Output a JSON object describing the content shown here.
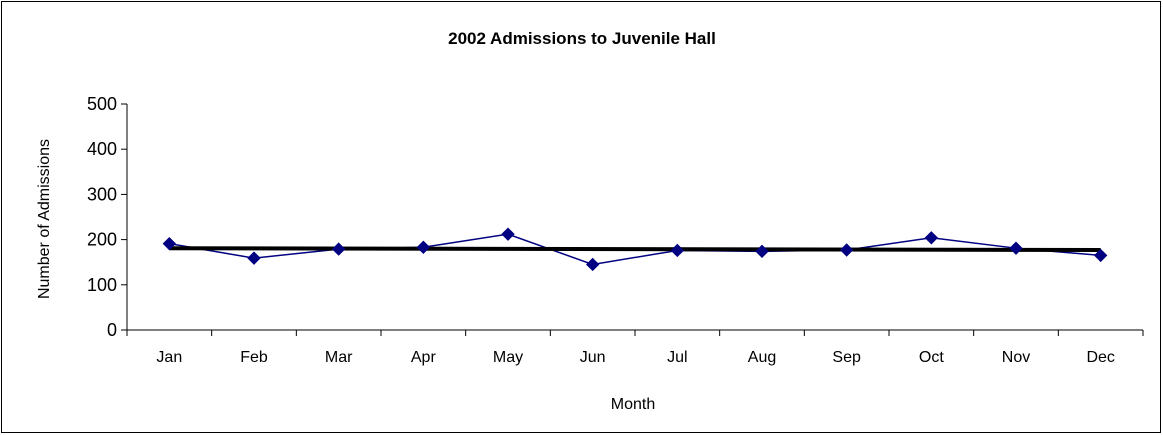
{
  "chart_data": {
    "type": "line",
    "title": "2002 Admissions to Juvenile Hall",
    "xlabel": "Month",
    "ylabel": "Number of Admissions",
    "categories": [
      "Jan",
      "Feb",
      "Mar",
      "Apr",
      "May",
      "Jun",
      "Jul",
      "Aug",
      "Sep",
      "Oct",
      "Nov",
      "Dec"
    ],
    "series": [
      {
        "values": [
          191,
          159,
          179,
          183,
          212,
          145,
          176,
          174,
          177,
          204,
          181,
          165
        ],
        "color": "#000080",
        "marker": "diamond"
      }
    ],
    "trendline": {
      "type": "linear",
      "start": 181,
      "end": 177,
      "color": "#000000"
    },
    "ylim": [
      0,
      500
    ],
    "yticks": [
      0,
      100,
      200,
      300,
      400,
      500
    ],
    "grid": false,
    "legend": "none"
  }
}
